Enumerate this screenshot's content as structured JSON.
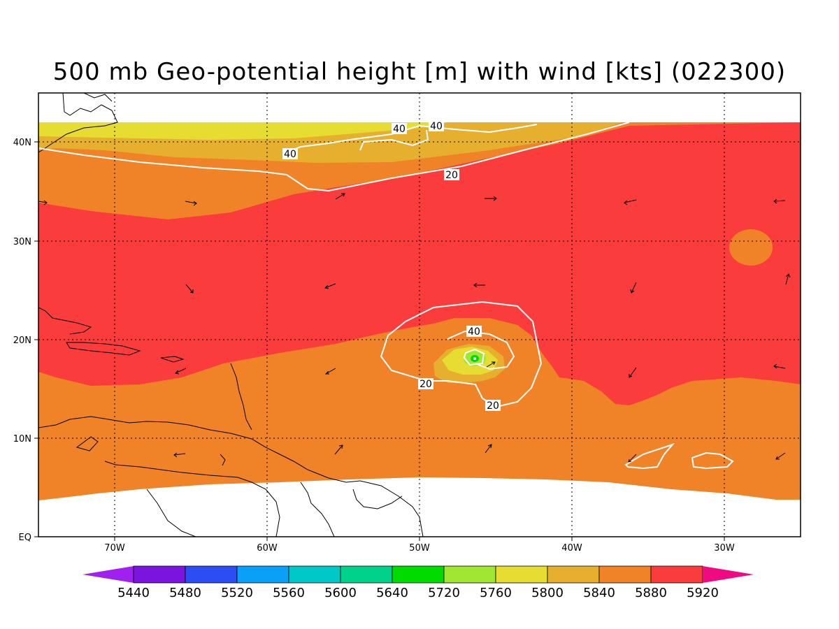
{
  "title": "500 mb Geo-potential height [m] with wind [kts] (022300)",
  "map": {
    "lon_ticks": [
      "70W",
      "60W",
      "50W",
      "40W",
      "30W"
    ],
    "lat_ticks": [
      "EQ",
      "10N",
      "20N",
      "30N",
      "40N"
    ],
    "lon_range": [
      -75,
      -25
    ],
    "lat_range": [
      0,
      45
    ]
  },
  "colorbar": {
    "levels": [
      "5440",
      "5480",
      "5520",
      "5560",
      "5600",
      "5640",
      "5720",
      "5760",
      "5800",
      "5840",
      "5880",
      "5920"
    ],
    "colors": [
      "#a020f0",
      "#7c14e0",
      "#2c4cf4",
      "#0aa0f8",
      "#00c8c8",
      "#00d28c",
      "#00dc00",
      "#a0e632",
      "#e6dc32",
      "#e6af2d",
      "#f08228",
      "#fa3c3c",
      "#f00a82"
    ]
  },
  "wind_contours": [
    "40",
    "40",
    "40",
    "20",
    "20",
    "20",
    "40"
  ],
  "fill_colors": {
    "c5920": "#fa3c3c",
    "c5880": "#f08228",
    "c5840": "#e6af2d",
    "c5800": "#e6dc32",
    "c5760": "#a0e632",
    "c5720": "#00dc00"
  }
}
